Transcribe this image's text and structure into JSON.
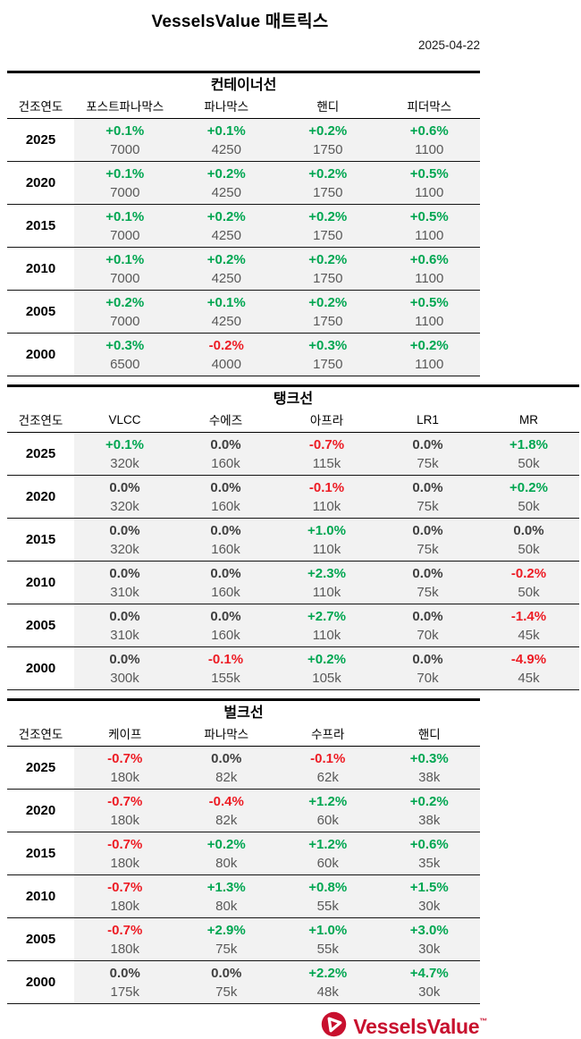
{
  "page": {
    "title": "VesselsValue 매트릭스",
    "date": "2025-04-22"
  },
  "colors": {
    "positive_green": "#00a651",
    "negative_red": "#ed1c24",
    "neutral_dark": "#404040",
    "value_gray": "#595959",
    "cell_background": "#f2f2f2",
    "rule_black": "#000000",
    "logo_red": "#c8102e"
  },
  "tables": [
    {
      "title": "컨테이너선",
      "year_header": "건조연도",
      "columns": [
        "포스트파나막스",
        "파나막스",
        "핸디",
        "피더막스"
      ],
      "rows": [
        {
          "year": "2025",
          "cells": [
            {
              "pct": "+0.1%",
              "value": "7000"
            },
            {
              "pct": "+0.1%",
              "value": "4250"
            },
            {
              "pct": "+0.2%",
              "value": "1750"
            },
            {
              "pct": "+0.6%",
              "value": "1100"
            }
          ]
        },
        {
          "year": "2020",
          "cells": [
            {
              "pct": "+0.1%",
              "value": "7000"
            },
            {
              "pct": "+0.2%",
              "value": "4250"
            },
            {
              "pct": "+0.2%",
              "value": "1750"
            },
            {
              "pct": "+0.5%",
              "value": "1100"
            }
          ]
        },
        {
          "year": "2015",
          "cells": [
            {
              "pct": "+0.1%",
              "value": "7000"
            },
            {
              "pct": "+0.2%",
              "value": "4250"
            },
            {
              "pct": "+0.2%",
              "value": "1750"
            },
            {
              "pct": "+0.5%",
              "value": "1100"
            }
          ]
        },
        {
          "year": "2010",
          "cells": [
            {
              "pct": "+0.1%",
              "value": "7000"
            },
            {
              "pct": "+0.2%",
              "value": "4250"
            },
            {
              "pct": "+0.2%",
              "value": "1750"
            },
            {
              "pct": "+0.6%",
              "value": "1100"
            }
          ]
        },
        {
          "year": "2005",
          "cells": [
            {
              "pct": "+0.2%",
              "value": "7000"
            },
            {
              "pct": "+0.1%",
              "value": "4250"
            },
            {
              "pct": "+0.2%",
              "value": "1750"
            },
            {
              "pct": "+0.5%",
              "value": "1100"
            }
          ]
        },
        {
          "year": "2000",
          "cells": [
            {
              "pct": "+0.3%",
              "value": "6500"
            },
            {
              "pct": "-0.2%",
              "value": "4000"
            },
            {
              "pct": "+0.3%",
              "value": "1750"
            },
            {
              "pct": "+0.2%",
              "value": "1100"
            }
          ]
        }
      ]
    },
    {
      "title": "탱크선",
      "year_header": "건조연도",
      "columns": [
        "VLCC",
        "수에즈",
        "아프라",
        "LR1",
        "MR"
      ],
      "rows": [
        {
          "year": "2025",
          "cells": [
            {
              "pct": "+0.1%",
              "value": "320k"
            },
            {
              "pct": "0.0%",
              "value": "160k"
            },
            {
              "pct": "-0.7%",
              "value": "115k"
            },
            {
              "pct": "0.0%",
              "value": "75k"
            },
            {
              "pct": "+1.8%",
              "value": "50k"
            }
          ]
        },
        {
          "year": "2020",
          "cells": [
            {
              "pct": "0.0%",
              "value": "320k"
            },
            {
              "pct": "0.0%",
              "value": "160k"
            },
            {
              "pct": "-0.1%",
              "value": "110k"
            },
            {
              "pct": "0.0%",
              "value": "75k"
            },
            {
              "pct": "+0.2%",
              "value": "50k"
            }
          ]
        },
        {
          "year": "2015",
          "cells": [
            {
              "pct": "0.0%",
              "value": "320k"
            },
            {
              "pct": "0.0%",
              "value": "160k"
            },
            {
              "pct": "+1.0%",
              "value": "110k"
            },
            {
              "pct": "0.0%",
              "value": "75k"
            },
            {
              "pct": "0.0%",
              "value": "50k"
            }
          ]
        },
        {
          "year": "2010",
          "cells": [
            {
              "pct": "0.0%",
              "value": "310k"
            },
            {
              "pct": "0.0%",
              "value": "160k"
            },
            {
              "pct": "+2.3%",
              "value": "110k"
            },
            {
              "pct": "0.0%",
              "value": "75k"
            },
            {
              "pct": "-0.2%",
              "value": "50k"
            }
          ]
        },
        {
          "year": "2005",
          "cells": [
            {
              "pct": "0.0%",
              "value": "310k"
            },
            {
              "pct": "0.0%",
              "value": "160k"
            },
            {
              "pct": "+2.7%",
              "value": "110k"
            },
            {
              "pct": "0.0%",
              "value": "70k"
            },
            {
              "pct": "-1.4%",
              "value": "45k"
            }
          ]
        },
        {
          "year": "2000",
          "cells": [
            {
              "pct": "0.0%",
              "value": "300k"
            },
            {
              "pct": "-0.1%",
              "value": "155k"
            },
            {
              "pct": "+0.2%",
              "value": "105k"
            },
            {
              "pct": "0.0%",
              "value": "70k"
            },
            {
              "pct": "-4.9%",
              "value": "45k"
            }
          ]
        }
      ]
    },
    {
      "title": "벌크선",
      "year_header": "건조연도",
      "columns": [
        "케이프",
        "파나막스",
        "수프라",
        "핸디"
      ],
      "rows": [
        {
          "year": "2025",
          "cells": [
            {
              "pct": "-0.7%",
              "value": "180k"
            },
            {
              "pct": "0.0%",
              "value": "82k"
            },
            {
              "pct": "-0.1%",
              "value": "62k"
            },
            {
              "pct": "+0.3%",
              "value": "38k"
            }
          ]
        },
        {
          "year": "2020",
          "cells": [
            {
              "pct": "-0.7%",
              "value": "180k"
            },
            {
              "pct": "-0.4%",
              "value": "82k"
            },
            {
              "pct": "+1.2%",
              "value": "60k"
            },
            {
              "pct": "+0.2%",
              "value": "38k"
            }
          ]
        },
        {
          "year": "2015",
          "cells": [
            {
              "pct": "-0.7%",
              "value": "180k"
            },
            {
              "pct": "+0.2%",
              "value": "80k"
            },
            {
              "pct": "+1.2%",
              "value": "60k"
            },
            {
              "pct": "+0.6%",
              "value": "35k"
            }
          ]
        },
        {
          "year": "2010",
          "cells": [
            {
              "pct": "-0.7%",
              "value": "180k"
            },
            {
              "pct": "+1.3%",
              "value": "80k"
            },
            {
              "pct": "+0.8%",
              "value": "55k"
            },
            {
              "pct": "+1.5%",
              "value": "30k"
            }
          ]
        },
        {
          "year": "2005",
          "cells": [
            {
              "pct": "-0.7%",
              "value": "180k"
            },
            {
              "pct": "+2.9%",
              "value": "75k"
            },
            {
              "pct": "+1.0%",
              "value": "55k"
            },
            {
              "pct": "+3.0%",
              "value": "30k"
            }
          ]
        },
        {
          "year": "2000",
          "cells": [
            {
              "pct": "0.0%",
              "value": "175k"
            },
            {
              "pct": "0.0%",
              "value": "75k"
            },
            {
              "pct": "+2.2%",
              "value": "48k"
            },
            {
              "pct": "+4.7%",
              "value": "30k"
            }
          ]
        }
      ]
    }
  ],
  "footer": {
    "brand": "VesselsValue",
    "trademark": "™",
    "logo_icon": "vesselsvalue-sail-icon"
  }
}
